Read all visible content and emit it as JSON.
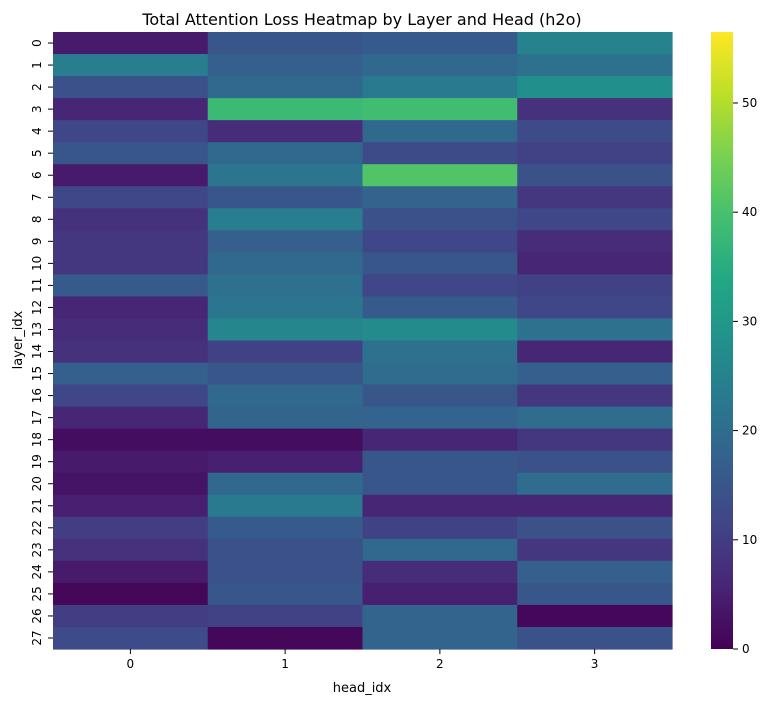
{
  "chart_data": {
    "type": "heatmap",
    "title": "Total Attention Loss Heatmap by Layer and Head (h2o)",
    "xlabel": "head_idx",
    "ylabel": "layer_idx",
    "x_categories": [
      "0",
      "1",
      "2",
      "3"
    ],
    "y_categories": [
      "0",
      "1",
      "2",
      "3",
      "4",
      "5",
      "6",
      "7",
      "8",
      "9",
      "10",
      "11",
      "12",
      "13",
      "14",
      "15",
      "16",
      "17",
      "18",
      "19",
      "20",
      "21",
      "22",
      "23",
      "24",
      "25",
      "26",
      "27"
    ],
    "values": [
      [
        4,
        15,
        16,
        25
      ],
      [
        24,
        17,
        19,
        21
      ],
      [
        14,
        19,
        23,
        28
      ],
      [
        6,
        38,
        39,
        8
      ],
      [
        12,
        7,
        19,
        13
      ],
      [
        15,
        19,
        13,
        11
      ],
      [
        4,
        22,
        41,
        14
      ],
      [
        12,
        15,
        18,
        9
      ],
      [
        8,
        24,
        14,
        12
      ],
      [
        9,
        17,
        12,
        7
      ],
      [
        9,
        19,
        15,
        6
      ],
      [
        16,
        21,
        12,
        11
      ],
      [
        6,
        22,
        16,
        12
      ],
      [
        7,
        26,
        27,
        21
      ],
      [
        8,
        11,
        21,
        6
      ],
      [
        17,
        15,
        20,
        17
      ],
      [
        12,
        19,
        15,
        9
      ],
      [
        6,
        18,
        18,
        20
      ],
      [
        2,
        2,
        6,
        9
      ],
      [
        4,
        5,
        15,
        14
      ],
      [
        3,
        19,
        15,
        20
      ],
      [
        5,
        23,
        6,
        6
      ],
      [
        10,
        16,
        11,
        14
      ],
      [
        8,
        14,
        19,
        9
      ],
      [
        4,
        14,
        7,
        17
      ],
      [
        1,
        15,
        5,
        15
      ],
      [
        10,
        11,
        18,
        1
      ],
      [
        13,
        1,
        18,
        14
      ]
    ],
    "vmin": 0,
    "vmax": 56.5,
    "colorbar_ticks": [
      0,
      10,
      20,
      30,
      40,
      50
    ],
    "colormap": "viridis"
  }
}
